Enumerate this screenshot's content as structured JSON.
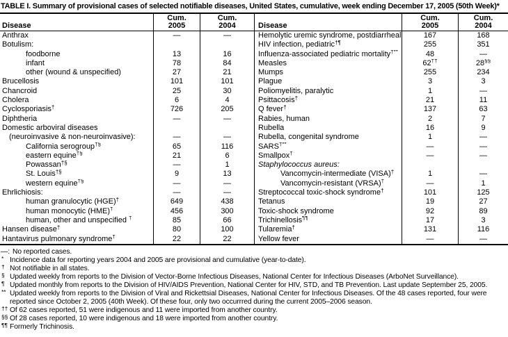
{
  "title": "TABLE I. Summary of provisional cases of selected notifiable diseases, United States, cumulative, week ending December 17, 2005 (50th Week)*",
  "columns": {
    "disease": "Disease",
    "cum": "Cum.",
    "y2005": "2005",
    "y2004": "2004"
  },
  "colors": {
    "text": "#000000",
    "background": "#ffffff",
    "border": "#000000"
  },
  "rows": [
    {
      "left": {
        "label": "Anthrax",
        "sup": "",
        "indent": 0,
        "italic": false,
        "v2005": "—",
        "v2004": "—"
      },
      "right": {
        "label": "Hemolytic uremic syndrome, postdiarrheal",
        "sup": "†",
        "indent": 0,
        "italic": false,
        "v2005": "167",
        "v2004": "168"
      }
    },
    {
      "left": {
        "label": "Botulism:",
        "sup": "",
        "indent": 0,
        "italic": false,
        "v2005": "",
        "v2004": ""
      },
      "right": {
        "label": "HIV infection, pediatric",
        "sup": "†¶",
        "indent": 0,
        "italic": false,
        "v2005": "255",
        "v2004": "351"
      }
    },
    {
      "left": {
        "label": "foodborne",
        "sup": "",
        "indent": 2,
        "italic": false,
        "v2005": "13",
        "v2004": "16"
      },
      "right": {
        "label": "Influenza-associated pediatric mortality",
        "sup": "†**",
        "indent": 0,
        "italic": false,
        "v2005": "48",
        "v2004": "—"
      }
    },
    {
      "left": {
        "label": "infant",
        "sup": "",
        "indent": 2,
        "italic": false,
        "v2005": "78",
        "v2004": "84"
      },
      "right": {
        "label": "Measles",
        "sup": "",
        "indent": 0,
        "italic": false,
        "v2005": "62",
        "v2005_sup": "††",
        "v2004": "28",
        "v2004_sup": "§§"
      }
    },
    {
      "left": {
        "label": "other (wound & unspecified)",
        "sup": "",
        "indent": 2,
        "italic": false,
        "v2005": "27",
        "v2004": "21"
      },
      "right": {
        "label": "Mumps",
        "sup": "",
        "indent": 0,
        "italic": false,
        "v2005": "255",
        "v2004": "234"
      }
    },
    {
      "left": {
        "label": "Brucellosis",
        "sup": "",
        "indent": 0,
        "italic": false,
        "v2005": "101",
        "v2004": "101"
      },
      "right": {
        "label": "Plague",
        "sup": "",
        "indent": 0,
        "italic": false,
        "v2005": "3",
        "v2004": "3"
      }
    },
    {
      "left": {
        "label": "Chancroid",
        "sup": "",
        "indent": 0,
        "italic": false,
        "v2005": "25",
        "v2004": "30"
      },
      "right": {
        "label": "Poliomyelitis, paralytic",
        "sup": "",
        "indent": 0,
        "italic": false,
        "v2005": "1",
        "v2004": "—"
      }
    },
    {
      "left": {
        "label": "Cholera",
        "sup": "",
        "indent": 0,
        "italic": false,
        "v2005": "6",
        "v2004": "4"
      },
      "right": {
        "label": "Psittacosis",
        "sup": "†",
        "indent": 0,
        "italic": false,
        "v2005": "21",
        "v2004": "11"
      }
    },
    {
      "left": {
        "label": "Cyclosporiasis",
        "sup": "†",
        "indent": 0,
        "italic": false,
        "v2005": "726",
        "v2004": "205"
      },
      "right": {
        "label": "Q fever",
        "sup": "†",
        "indent": 0,
        "italic": false,
        "v2005": "137",
        "v2004": "63"
      }
    },
    {
      "left": {
        "label": "Diphtheria",
        "sup": "",
        "indent": 0,
        "italic": false,
        "v2005": "—",
        "v2004": "—"
      },
      "right": {
        "label": "Rabies, human",
        "sup": "",
        "indent": 0,
        "italic": false,
        "v2005": "2",
        "v2004": "7"
      }
    },
    {
      "left": {
        "label": "Domestic arboviral diseases",
        "sup": "",
        "indent": 0,
        "italic": false,
        "v2005": "",
        "v2004": ""
      },
      "right": {
        "label": "Rubella",
        "sup": "",
        "indent": 0,
        "italic": false,
        "v2005": "16",
        "v2004": "9"
      }
    },
    {
      "left": {
        "label": "(neuroinvasive & non-neuroinvasive):",
        "sup": "",
        "indent": 1,
        "italic": false,
        "v2005": "—",
        "v2004": "—"
      },
      "right": {
        "label": "Rubella, congenital syndrome",
        "sup": "",
        "indent": 0,
        "italic": false,
        "v2005": "1",
        "v2004": "—"
      }
    },
    {
      "left": {
        "label": "California serogroup",
        "sup": "†§",
        "indent": 2,
        "italic": false,
        "v2005": "65",
        "v2004": "116"
      },
      "right": {
        "label": "SARS",
        "sup": "†**",
        "indent": 0,
        "italic": false,
        "v2005": "—",
        "v2004": "—"
      }
    },
    {
      "left": {
        "label": "eastern equine",
        "sup": "†§",
        "indent": 2,
        "italic": false,
        "v2005": "21",
        "v2004": "6"
      },
      "right": {
        "label": "Smallpox",
        "sup": "†",
        "indent": 0,
        "italic": false,
        "v2005": "—",
        "v2004": "—"
      }
    },
    {
      "left": {
        "label": "Powassan",
        "sup": "†§",
        "indent": 2,
        "italic": false,
        "v2005": "—",
        "v2004": "1"
      },
      "right": {
        "label": "Staphylococcus aureus:",
        "sup": "",
        "indent": 0,
        "italic": true,
        "v2005": "",
        "v2004": ""
      }
    },
    {
      "left": {
        "label": "St. Louis",
        "sup": "†§",
        "indent": 2,
        "italic": false,
        "v2005": "9",
        "v2004": "13"
      },
      "right": {
        "label": "Vancomycin-intermediate (VISA)",
        "sup": "†",
        "indent": 2,
        "italic": false,
        "v2005": "1",
        "v2004": "—"
      }
    },
    {
      "left": {
        "label": "western equine",
        "sup": "†§",
        "indent": 2,
        "italic": false,
        "v2005": "—",
        "v2004": "—"
      },
      "right": {
        "label": "Vancomycin-resistant (VRSA)",
        "sup": "†",
        "indent": 2,
        "italic": false,
        "v2005": "—",
        "v2004": "1"
      }
    },
    {
      "left": {
        "label": "Ehrlichiosis:",
        "sup": "",
        "indent": 0,
        "italic": false,
        "v2005": "—",
        "v2004": "—"
      },
      "right": {
        "label": "Streptococcal toxic-shock syndrome",
        "sup": "†",
        "indent": 0,
        "italic": false,
        "v2005": "101",
        "v2004": "125"
      }
    },
    {
      "left": {
        "label": "human granulocytic (HGE)",
        "sup": "†",
        "indent": 2,
        "italic": false,
        "v2005": "649",
        "v2004": "438"
      },
      "right": {
        "label": "Tetanus",
        "sup": "",
        "indent": 0,
        "italic": false,
        "v2005": "19",
        "v2004": "27"
      }
    },
    {
      "left": {
        "label": "human monocytic (HME)",
        "sup": "†",
        "indent": 2,
        "italic": false,
        "v2005": "456",
        "v2004": "300"
      },
      "right": {
        "label": "Toxic-shock syndrome",
        "sup": "",
        "indent": 0,
        "italic": false,
        "v2005": "92",
        "v2004": "89"
      }
    },
    {
      "left": {
        "label": "human, other and unspecified ",
        "sup": "†",
        "indent": 2,
        "italic": false,
        "v2005": "85",
        "v2004": "66"
      },
      "right": {
        "label": "Trichinellosis",
        "sup": "¶¶",
        "indent": 0,
        "italic": false,
        "v2005": "17",
        "v2004": "3"
      }
    },
    {
      "left": {
        "label": "Hansen disease",
        "sup": "†",
        "indent": 0,
        "italic": false,
        "v2005": "80",
        "v2004": "100"
      },
      "right": {
        "label": "Tularemia",
        "sup": "†",
        "indent": 0,
        "italic": false,
        "v2005": "131",
        "v2004": "116"
      }
    },
    {
      "left": {
        "label": "Hantavirus pulmonary syndrome",
        "sup": "†",
        "indent": 0,
        "italic": false,
        "v2005": "22",
        "v2004": "22"
      },
      "right": {
        "label": "Yellow fever",
        "sup": "",
        "indent": 0,
        "italic": false,
        "v2005": "—",
        "v2004": "—"
      }
    }
  ],
  "footnotes": [
    {
      "marker": "—:",
      "plain": true,
      "text": "No reported cases."
    },
    {
      "marker": "*",
      "plain": false,
      "text": "Incidence data for reporting years 2004 and 2005 are provisional and cumulative (year-to-date)."
    },
    {
      "marker": "†",
      "plain": false,
      "text": "Not notifiable in all states."
    },
    {
      "marker": "§",
      "plain": false,
      "text": "Updated weekly from reports to the Division of Vector-Borne Infectious Diseases, National Center for Infectious Diseases (ArboNet Surveillance)."
    },
    {
      "marker": "¶",
      "plain": false,
      "text": "Updated monthly from reports to the Division of HIV/AIDS Prevention, National Center for HIV, STD, and TB Prevention. Last update September 25, 2005."
    },
    {
      "marker": "**",
      "plain": false,
      "text": "Updated weekly from reports to the Division of Viral and Rickettsial Diseases, National Center for Infectious Diseases. Of the 48 cases reported, four were reported since October 2, 2005 (40th Week). Of these four, only two occurrred during the current 2005–2006 season."
    },
    {
      "marker": "††",
      "plain": false,
      "text": "Of 62 cases reported, 51 were indigenous and 11 were imported from another country."
    },
    {
      "marker": "§§",
      "plain": false,
      "text": "Of 28 cases reported, 10 were indigenous and 18 were imported from another country."
    },
    {
      "marker": "¶¶",
      "plain": false,
      "text": "Formerly Trichinosis."
    }
  ]
}
